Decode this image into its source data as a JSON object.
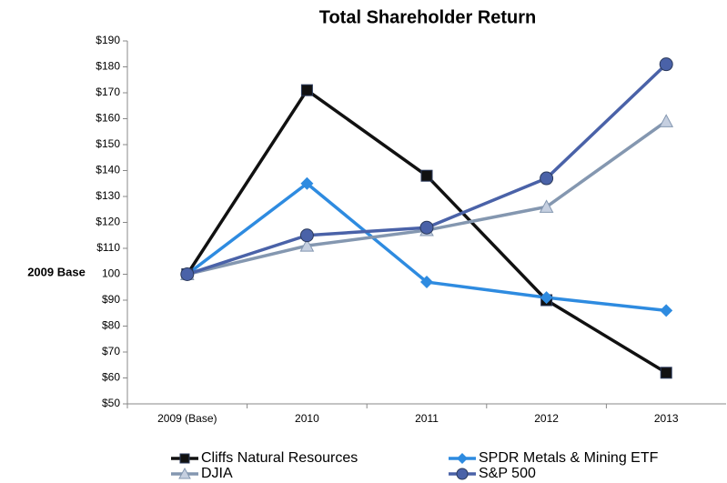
{
  "chart_data": {
    "type": "line",
    "title": "Total Shareholder Return",
    "y_label": "2009 Base",
    "categories": [
      "2009 (Base)",
      "2010",
      "2011",
      "2012",
      "2013"
    ],
    "series": [
      {
        "name": "Cliffs Natural Resources",
        "color": "#111111",
        "marker": "square",
        "values": [
          100,
          171,
          138,
          90,
          62
        ]
      },
      {
        "name": "SPDR Metals & Mining ETF",
        "color": "#2e8be0",
        "marker": "diamond",
        "values": [
          100,
          135,
          97,
          91,
          86
        ]
      },
      {
        "name": "DJIA",
        "color": "#8497b0",
        "marker": "triangle",
        "values": [
          100,
          111,
          117,
          126,
          159
        ]
      },
      {
        "name": "S&P 500",
        "color": "#4a62a8",
        "marker": "circle",
        "values": [
          100,
          115,
          118,
          137,
          181
        ]
      }
    ],
    "ylim": [
      50,
      190
    ],
    "yticks": [
      {
        "value": 50,
        "label": "$50"
      },
      {
        "value": 60,
        "label": "$60"
      },
      {
        "value": 70,
        "label": "$70"
      },
      {
        "value": 80,
        "label": "$80"
      },
      {
        "value": 90,
        "label": "$90"
      },
      {
        "value": 100,
        "label": "100"
      },
      {
        "value": 110,
        "label": "$110"
      },
      {
        "value": 120,
        "label": "$120"
      },
      {
        "value": 130,
        "label": "$130"
      },
      {
        "value": 140,
        "label": "$140"
      },
      {
        "value": 150,
        "label": "$150"
      },
      {
        "value": 160,
        "label": "$160"
      },
      {
        "value": 170,
        "label": "$170"
      },
      {
        "value": 180,
        "label": "$180"
      },
      {
        "value": 190,
        "label": "$190"
      }
    ],
    "grid": false,
    "legend": "bottom"
  }
}
